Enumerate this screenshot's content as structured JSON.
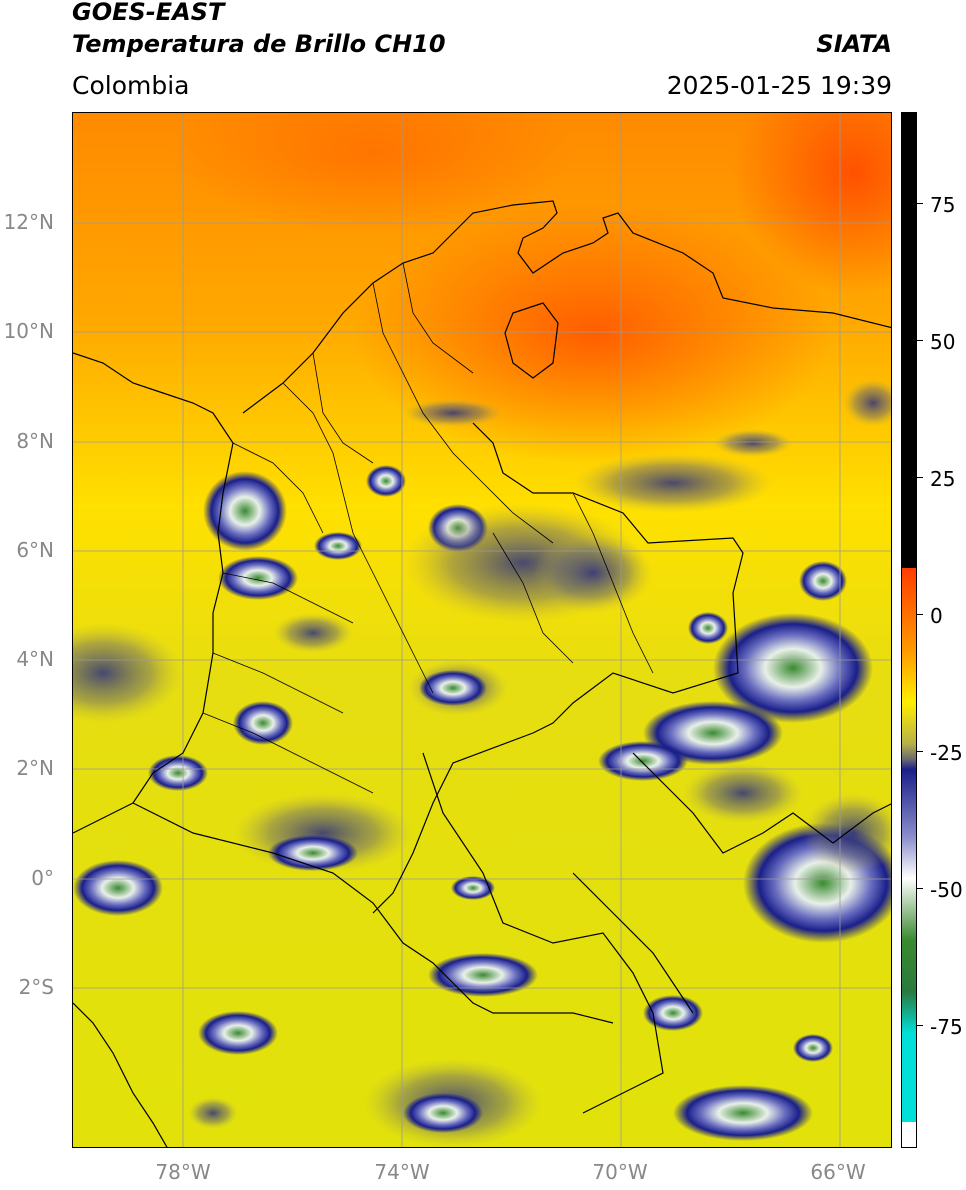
{
  "header": {
    "satellite": "GOES-EAST",
    "product": "Temperatura de Brillo CH10",
    "region": "Colombia",
    "brand": "SIATA",
    "datetime": "2025-01-25 19:39"
  },
  "map": {
    "lat_labels": [
      "12°N",
      "10°N",
      "8°N",
      "6°N",
      "4°N",
      "2°N",
      "0°",
      "2°S"
    ],
    "lon_labels": [
      "78°W",
      "74°W",
      "70°W",
      "66°W"
    ],
    "lat_range": [
      -5,
      14
    ],
    "lon_range": [
      -80,
      -65
    ]
  },
  "colorbar": {
    "tick_labels": [
      "75",
      "50",
      "25",
      "0",
      "-25",
      "-50",
      "-75"
    ],
    "range": [
      -100,
      90
    ],
    "colors": {
      "warm": "#ff3c00",
      "orange": "#ff9a00",
      "yellow": "#ffee00",
      "olive": "#b8b04a",
      "navy": "#1a1f8a",
      "white": "#ffffff",
      "green": "#3a8a30",
      "cyan": "#00e0d8",
      "black": "#000000"
    }
  }
}
